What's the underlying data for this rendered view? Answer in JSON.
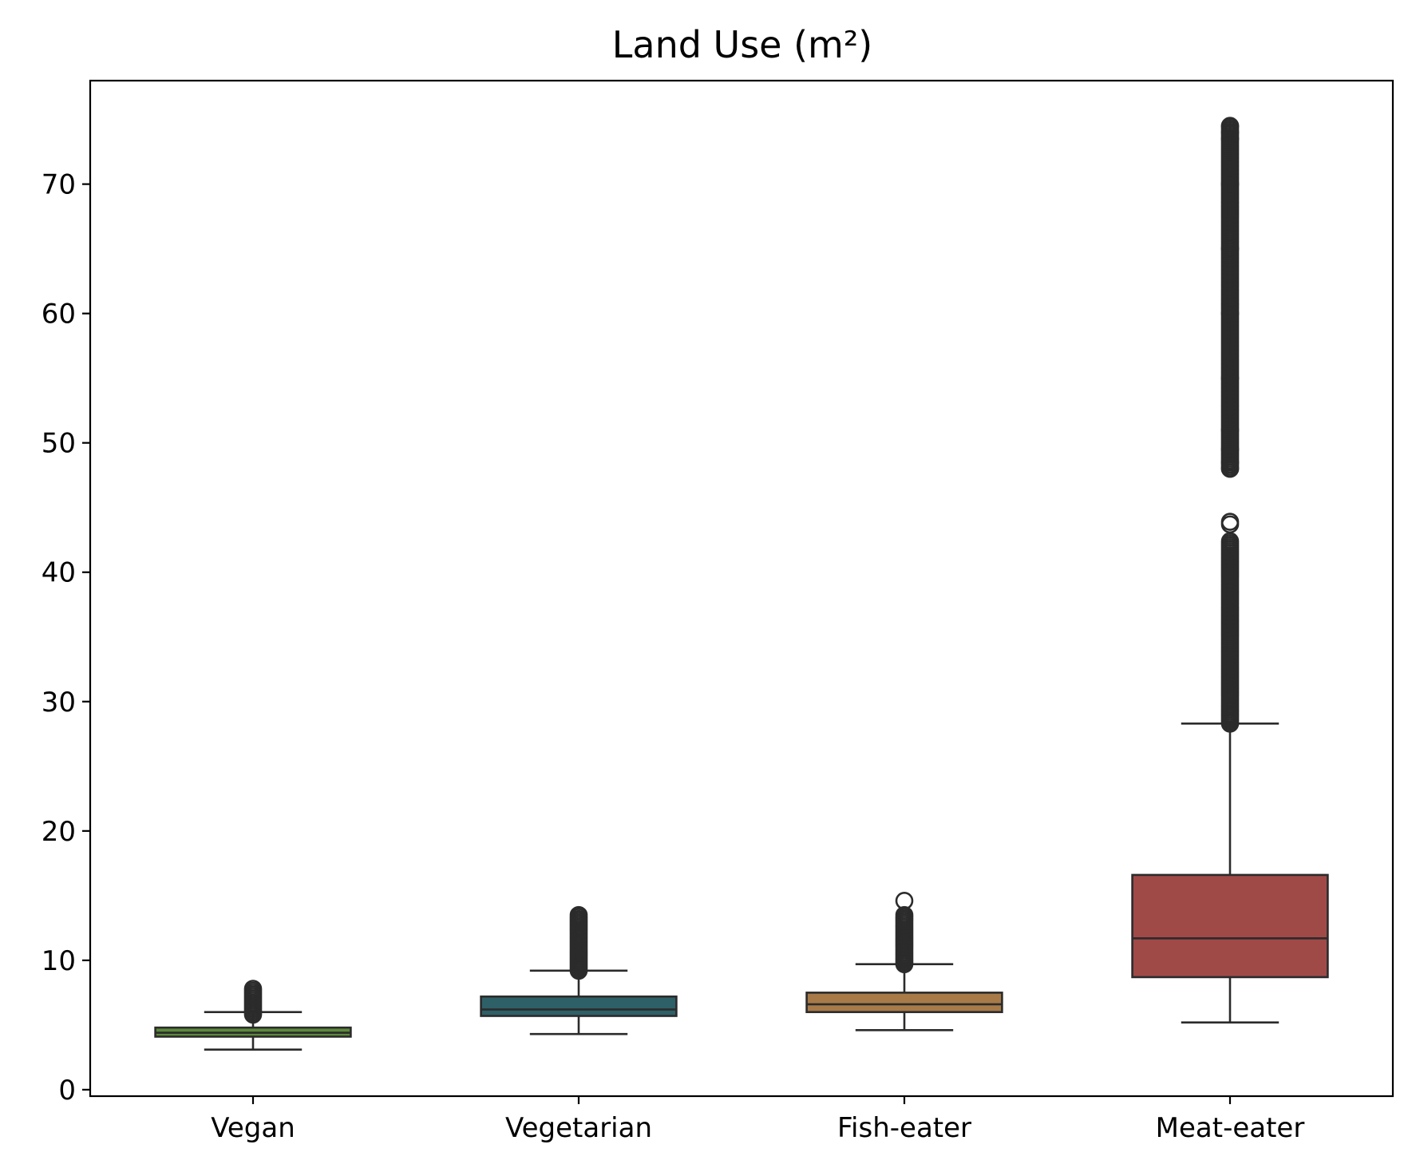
{
  "chart_data": {
    "type": "box",
    "title": "Land Use (m²)",
    "xlabel": "",
    "ylabel": "",
    "ylim": [
      -0.5,
      78
    ],
    "yticks": [
      0,
      10,
      20,
      30,
      40,
      50,
      60,
      70
    ],
    "grid": false,
    "categories": [
      "Vegan",
      "Vegetarian",
      "Fish-eater",
      "Meat-eater"
    ],
    "boxes": [
      {
        "category": "Vegan",
        "color": "#5c8a3a",
        "whisker_low": 3.1,
        "q1": 4.1,
        "median": 4.4,
        "q3": 4.8,
        "whisker_high": 6.0,
        "outliers_high": {
          "min": 5.8,
          "max": 7.8
        }
      },
      {
        "category": "Vegetarian",
        "color": "#2e6068",
        "whisker_low": 4.3,
        "q1": 5.7,
        "median": 6.2,
        "q3": 7.2,
        "whisker_high": 9.2,
        "outliers_high": {
          "min": 9.2,
          "max": 13.5
        }
      },
      {
        "category": "Fish-eater",
        "color": "#a77a48",
        "whisker_low": 4.6,
        "q1": 6.0,
        "median": 6.6,
        "q3": 7.5,
        "whisker_high": 9.7,
        "outliers_high": {
          "min": 9.7,
          "max": 13.5,
          "extra": [
            14.6
          ]
        }
      },
      {
        "category": "Meat-eater",
        "color": "#a04a48",
        "whisker_low": 5.2,
        "q1": 8.7,
        "median": 11.7,
        "q3": 16.6,
        "whisker_high": 28.3,
        "outliers_high": {
          "min": 28.3,
          "max": 42.4,
          "extra": [
            43.7,
            43.9,
            48.0,
            48.5,
            49.5,
            51.0,
            55.0,
            60.0,
            65.0,
            70.0,
            73.5,
            74.0,
            74.5
          ]
        }
      }
    ]
  }
}
